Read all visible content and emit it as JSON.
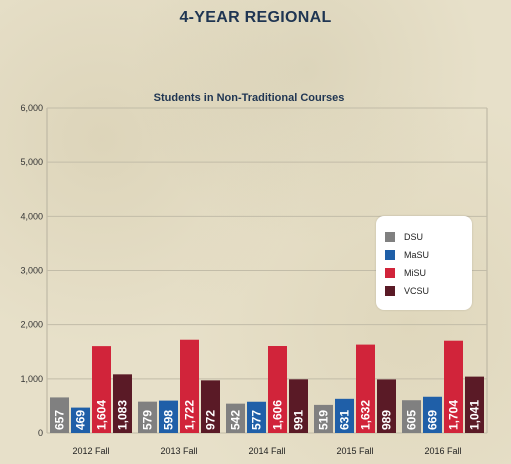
{
  "page": {
    "title": "4-YEAR REGIONAL"
  },
  "chart_data": {
    "type": "bar",
    "title": "Students in Non-Traditional Courses",
    "xlabel": "",
    "ylabel": "",
    "ylim": [
      0,
      6000
    ],
    "yticks": [
      "0",
      "1,000",
      "2,000",
      "3,000",
      "4,000",
      "5,000",
      "6,000"
    ],
    "categories": [
      "2012 Fall",
      "2013 Fall",
      "2014 Fall",
      "2015 Fall",
      "2016 Fall"
    ],
    "series": [
      {
        "name": "DSU",
        "color": "#808080",
        "values": [
          657,
          579,
          542,
          519,
          605
        ],
        "labels": [
          "657",
          "579",
          "542",
          "519",
          "605"
        ]
      },
      {
        "name": "MaSU",
        "color": "#1f5fa8",
        "values": [
          469,
          598,
          577,
          631,
          669
        ],
        "labels": [
          "469",
          "598",
          "577",
          "631",
          "669"
        ]
      },
      {
        "name": "MiSU",
        "color": "#d1243a",
        "values": [
          1604,
          1722,
          1606,
          1632,
          1704
        ],
        "labels": [
          "1,604",
          "1,722",
          "1,606",
          "1,632",
          "1,704"
        ]
      },
      {
        "name": "VCSU",
        "color": "#5a1a26",
        "values": [
          1083,
          972,
          991,
          989,
          1041
        ],
        "labels": [
          "1,083",
          "972",
          "991",
          "989",
          "1,041"
        ]
      }
    ],
    "grid": true,
    "legend": "right"
  }
}
